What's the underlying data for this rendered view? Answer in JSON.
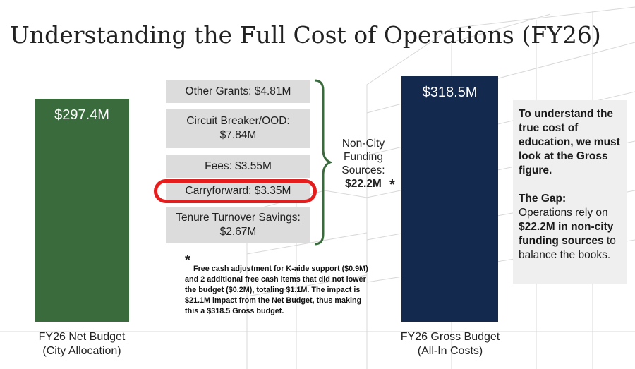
{
  "title": "Understanding the Full Cost of Operations (FY26)",
  "net_budget": {
    "value": "$297.4M",
    "label_line1": "FY26 Net Budget",
    "label_line2": "(City Allocation)",
    "color": "#3a6b3c"
  },
  "gross_budget": {
    "value": "$318.5M",
    "label_line1": "FY26 Gross Budget",
    "label_line2": "(All-In Costs)",
    "color": "#13294d"
  },
  "funding_sources": [
    {
      "line1": "Other Grants: $4.81M",
      "line2": ""
    },
    {
      "line1": "Circuit Breaker/OOD:",
      "line2": "$7.84M"
    },
    {
      "line1": "Fees: $3.55M",
      "line2": ""
    },
    {
      "line1": "Carryforward: $3.35M",
      "line2": "",
      "highlighted": true
    },
    {
      "line1": "Tenure Turnover Savings:",
      "line2": "$2.67M"
    }
  ],
  "non_city": {
    "line1": "Non-City",
    "line2": "Funding",
    "line3": "Sources:",
    "total": "$22.2M",
    "asterisk": "*"
  },
  "footnote": {
    "asterisk": "*",
    "lines": [
      "Free cash adjustment for K-aide support ($0.9M)",
      "and 2 additional free cash items that did not lower",
      "the budget ($0.2M), totaling $1.1M.  The impact is",
      "$21.1M  impact from the Net Budget, thus making",
      "this a $318.5 Gross budget."
    ]
  },
  "side_panel": {
    "intro": "To understand the true cost of education, we must look at the Gross figure.",
    "gap_heading": "The Gap:",
    "gap_text_1": "Operations rely on",
    "gap_highlight": "$22.2M in non-city funding sources",
    "gap_text_2": "to balance the books."
  },
  "highlight_color": "#e51d1d"
}
